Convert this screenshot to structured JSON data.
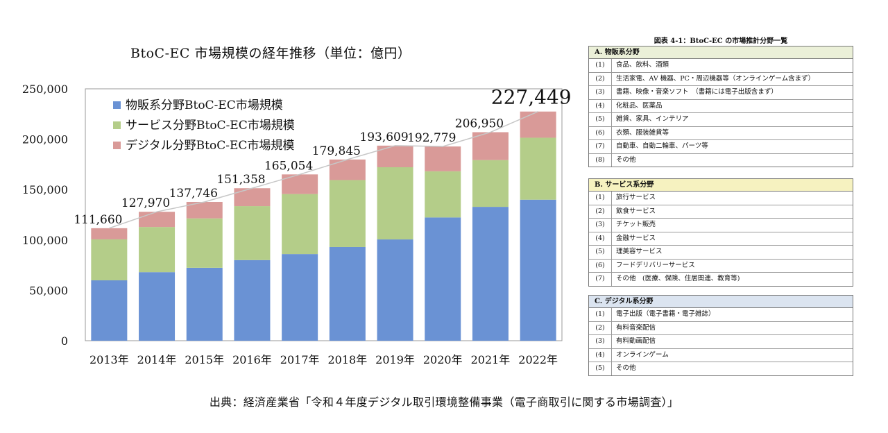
{
  "colors": {
    "physical": "#6a92d4",
    "service": "#b4cd89",
    "digital": "#d99a98",
    "plot_bg": "#ffffff",
    "panel_a_header": "#ebf0d8",
    "panel_b_header": "#f6f2c0",
    "panel_c_header": "#dbe4f0"
  },
  "chart_data": {
    "type": "bar",
    "stacked": true,
    "title": "BtoC-EC 市場規模の経年推移（単位：億円）",
    "categories": [
      "2013年",
      "2014年",
      "2015年",
      "2016年",
      "2017年",
      "2018年",
      "2019年",
      "2020年",
      "2021年",
      "2022年"
    ],
    "ylim": [
      0,
      250000
    ],
    "yticks": [
      "0",
      "50,000",
      "100,000",
      "150,000",
      "200,000",
      "250,000"
    ],
    "ytick_values": [
      0,
      50000,
      100000,
      150000,
      200000,
      250000
    ],
    "series": [
      {
        "name": "物販系分野BtoC-EC市場規模",
        "values": [
          59931,
          68043,
          72398,
          80043,
          86008,
          92992,
          100515,
          122333,
          132865,
          139997
        ]
      },
      {
        "name": "サービス分野BtoC-EC市場規模",
        "values": [
          40663,
          44816,
          49014,
          53532,
          59568,
          66471,
          71672,
          45832,
          46424,
          61477
        ]
      },
      {
        "name": "デジタル分野BtoC-EC市場規模",
        "values": [
          11066,
          15111,
          16334,
          17782,
          19478,
          20382,
          21422,
          24614,
          27661,
          25974
        ]
      }
    ],
    "totals": [
      "111,660",
      "127,970",
      "137,746",
      "151,358",
      "165,054",
      "179,845",
      "193,609",
      "192,779",
      "206,950",
      "227,449"
    ],
    "total_values": [
      111660,
      127970,
      137746,
      151358,
      165054,
      179845,
      193609,
      192779,
      206950,
      227449
    ],
    "legend_position": "top-left",
    "grid": false
  },
  "table_title": "図表 4-1：BtoC-EC の市場推計分野一覧",
  "panels": [
    {
      "header": "A. 物販系分野",
      "rows": [
        {
          "num": "(1)",
          "text": "食品、飲料、酒類"
        },
        {
          "num": "(2)",
          "text": "生活家電、AV 機器、PC・周辺機器等（オンラインゲーム含まず）"
        },
        {
          "num": "(3)",
          "text": "書籍、映像・音楽ソフト　（書籍には電子出版含まず）"
        },
        {
          "num": "(4)",
          "text": "化粧品、医薬品"
        },
        {
          "num": "(5)",
          "text": "雑貨、家具、インテリア"
        },
        {
          "num": "(6)",
          "text": "衣類、服装雑貨等"
        },
        {
          "num": "(7)",
          "text": "自動車、自動二輪車、パーツ等"
        },
        {
          "num": "(8)",
          "text": "その他"
        }
      ]
    },
    {
      "header": "B. サービス系分野",
      "rows": [
        {
          "num": "(1)",
          "text": "旅行サービス"
        },
        {
          "num": "(2)",
          "text": "飲食サービス"
        },
        {
          "num": "(3)",
          "text": "チケット販売"
        },
        {
          "num": "(4)",
          "text": "金融サービス"
        },
        {
          "num": "(5)",
          "text": "理美容サービス"
        },
        {
          "num": "(6)",
          "text": "フードデリバリーサービス"
        },
        {
          "num": "(7)",
          "text": "その他　(医療、保険、住居関連、教育等)"
        }
      ]
    },
    {
      "header": "C. デジタル系分野",
      "rows": [
        {
          "num": "(1)",
          "text": "電子出版（電子書籍・電子雑誌）"
        },
        {
          "num": "(2)",
          "text": "有料音楽配信"
        },
        {
          "num": "(3)",
          "text": "有料動画配信"
        },
        {
          "num": "(4)",
          "text": "オンラインゲーム"
        },
        {
          "num": "(5)",
          "text": "その他"
        }
      ]
    }
  ],
  "source": "出典：経済産業省「令和４年度デジタル取引環境整備事業（電子商取引に関する市場調査）」"
}
